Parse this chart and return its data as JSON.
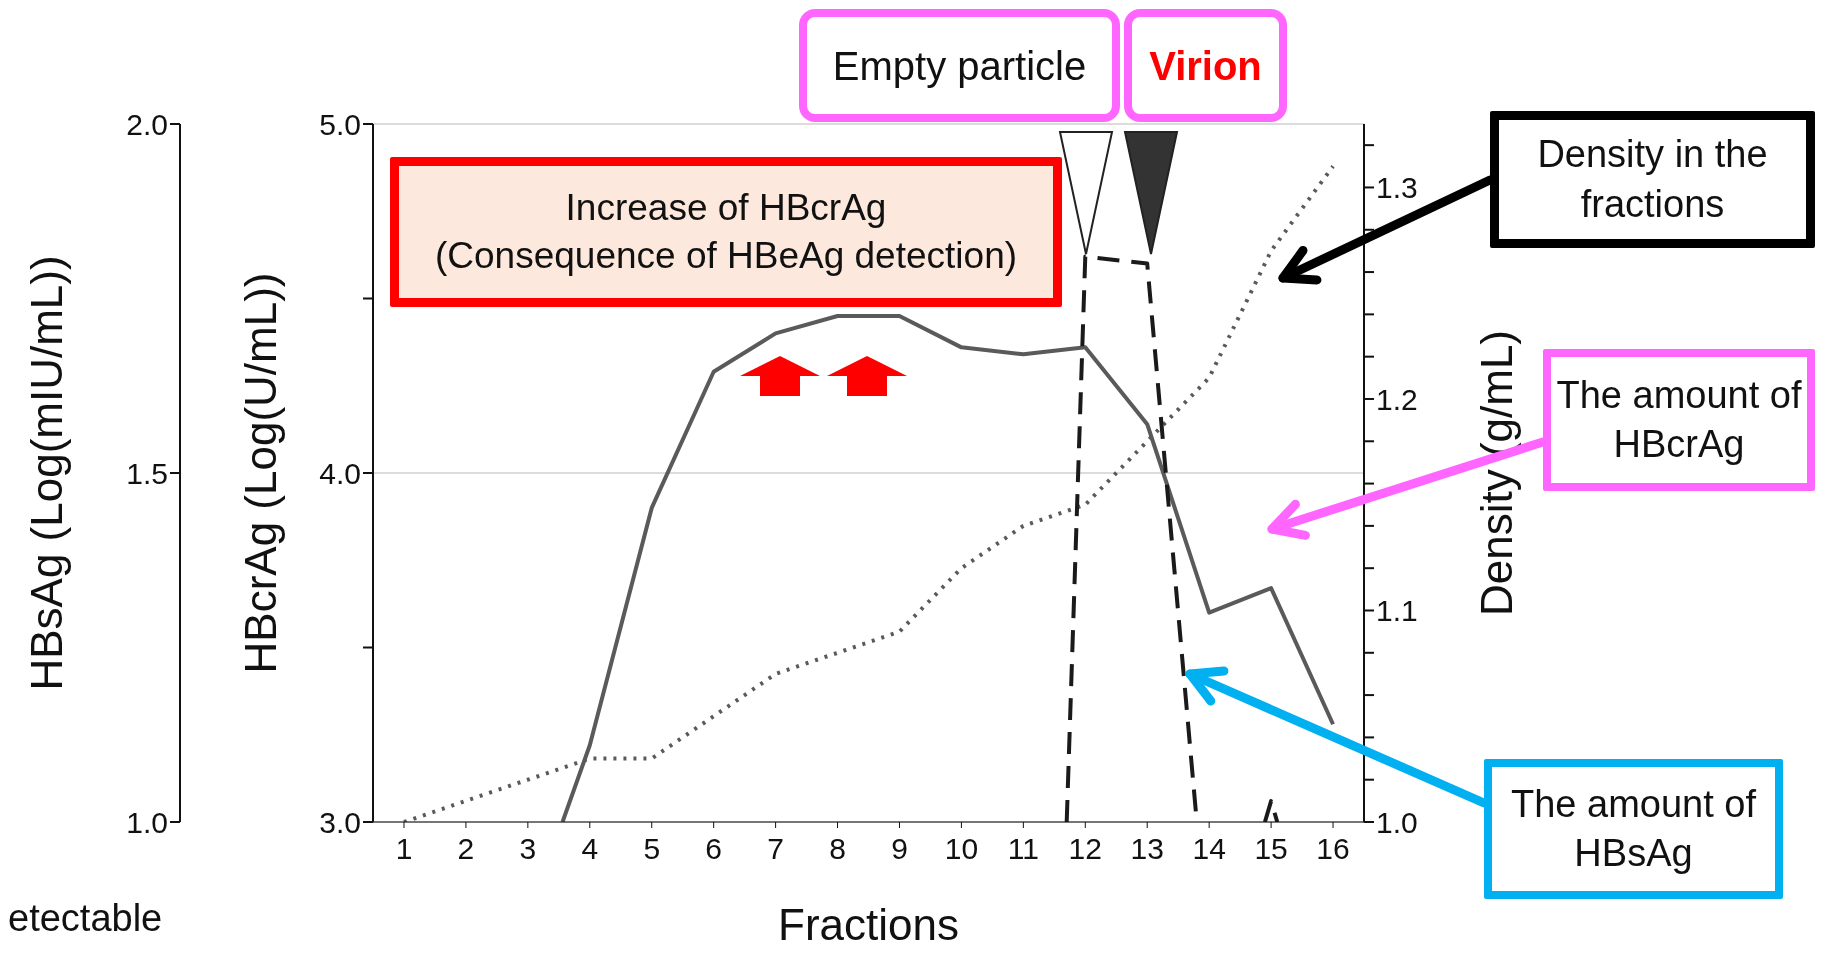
{
  "chart_data": {
    "type": "line",
    "xlabel": "Fractions",
    "ylabel": "HBcrAg (Log(U/mL))",
    "y3label": "HBsAg (Log(mIU/mL))",
    "y2label": "Density (g/mL)",
    "xlim": [
      0.5,
      16.5
    ],
    "xticks": [
      1,
      2,
      3,
      4,
      5,
      6,
      7,
      8,
      9,
      10,
      11,
      12,
      13,
      14,
      15,
      16
    ],
    "ylim": [
      3,
      5
    ],
    "yticks": [
      {
        "value": 3,
        "label": "3.0"
      },
      {
        "value": 3.5,
        "label": null
      },
      {
        "value": 4,
        "label": "4.0"
      },
      {
        "value": 4.5,
        "label": null
      },
      {
        "value": 5,
        "label": "5.0"
      }
    ],
    "y3lim": [
      1,
      2
    ],
    "y3ticks": [
      {
        "value": 1,
        "label": "1.0"
      },
      {
        "value": 1.5,
        "label": "1.5"
      },
      {
        "value": 2,
        "label": "2.0"
      }
    ],
    "y2lim": [
      1.0,
      1.33
    ],
    "y2ticks": [
      {
        "value": 1,
        "label": "1.0"
      },
      {
        "value": 1.02,
        "label": null
      },
      {
        "value": 1.04,
        "label": null
      },
      {
        "value": 1.06,
        "label": null
      },
      {
        "value": 1.08,
        "label": null
      },
      {
        "value": 1.1,
        "label": "1.1"
      },
      {
        "value": 1.12,
        "label": null
      },
      {
        "value": 1.14,
        "label": null
      },
      {
        "value": 1.16,
        "label": null
      },
      {
        "value": 1.18,
        "label": null
      },
      {
        "value": 1.2,
        "label": "1.2"
      },
      {
        "value": 1.22,
        "label": null
      },
      {
        "value": 1.24,
        "label": null
      },
      {
        "value": 1.26,
        "label": null
      },
      {
        "value": 1.28,
        "label": null
      },
      {
        "value": 1.3,
        "label": "1.3"
      },
      {
        "value": 1.32,
        "label": null
      }
    ],
    "grid": "y",
    "marker": "none",
    "series": [
      {
        "color": "#5a5a5a",
        "line_style": "solid",
        "x": [
          3.56,
          4,
          5,
          6,
          7,
          8,
          9,
          10,
          11,
          12,
          13,
          14,
          15,
          16
        ],
        "values": [
          3.0,
          3.22,
          3.9,
          4.29,
          4.4,
          4.45,
          4.45,
          4.36,
          4.34,
          4.36,
          4.14,
          3.6,
          3.67,
          3.28
        ]
      },
      {
        "color": "#5a5a5a",
        "line_style": "dotted",
        "axis": "y2",
        "x": [
          1,
          2,
          3,
          4,
          5,
          6,
          7,
          8,
          9,
          10,
          11,
          12,
          13,
          14,
          15,
          16
        ],
        "values": [
          1.0,
          1.01,
          1.02,
          1.03,
          1.03,
          1.05,
          1.07,
          1.08,
          1.09,
          1.12,
          1.14,
          1.15,
          1.18,
          1.21,
          1.27,
          1.31
        ]
      },
      {
        "color": "#1a1a1a",
        "line_style": "dashed",
        "axis": "y3",
        "x": [
          11.7,
          12,
          13,
          13.8,
          14.4,
          14.9,
          15,
          15.1
        ],
        "values": [
          1.0,
          1.81,
          1.8,
          1.0,
          null,
          1.0,
          1.03,
          1.0
        ]
      }
    ],
    "annotations": [
      "Empty particle",
      "Virion",
      "Increase of HBcrAg\n(Consequence of HBeAg detection)",
      "Density in the fractions",
      "The amount of HBcrAg",
      "The amount of HBsAg",
      "etectable"
    ]
  }
}
